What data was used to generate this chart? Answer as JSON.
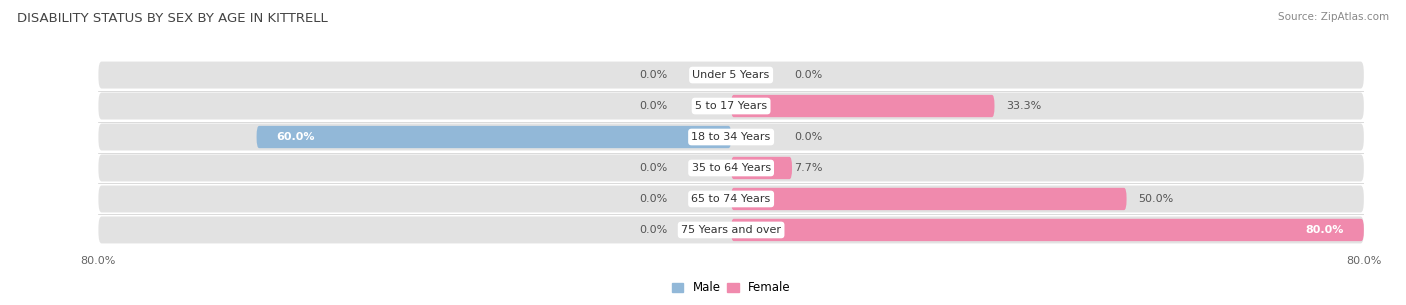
{
  "title": "DISABILITY STATUS BY SEX BY AGE IN KITTRELL",
  "source": "Source: ZipAtlas.com",
  "categories": [
    "Under 5 Years",
    "5 to 17 Years",
    "18 to 34 Years",
    "35 to 64 Years",
    "65 to 74 Years",
    "75 Years and over"
  ],
  "male_values": [
    0.0,
    0.0,
    60.0,
    0.0,
    0.0,
    0.0
  ],
  "female_values": [
    0.0,
    33.3,
    0.0,
    7.7,
    50.0,
    80.0
  ],
  "male_color": "#92b8d8",
  "female_color": "#f08aad",
  "bar_bg_color": "#e2e2e2",
  "xlim": 80.0,
  "bar_height": 0.72,
  "title_fontsize": 9.5,
  "label_fontsize": 8,
  "tick_fontsize": 8,
  "source_fontsize": 7.5,
  "value_fontsize": 8,
  "legend_fontsize": 8.5,
  "bg_row_colors": [
    "#f0f0f0",
    "#e8e8e8"
  ]
}
